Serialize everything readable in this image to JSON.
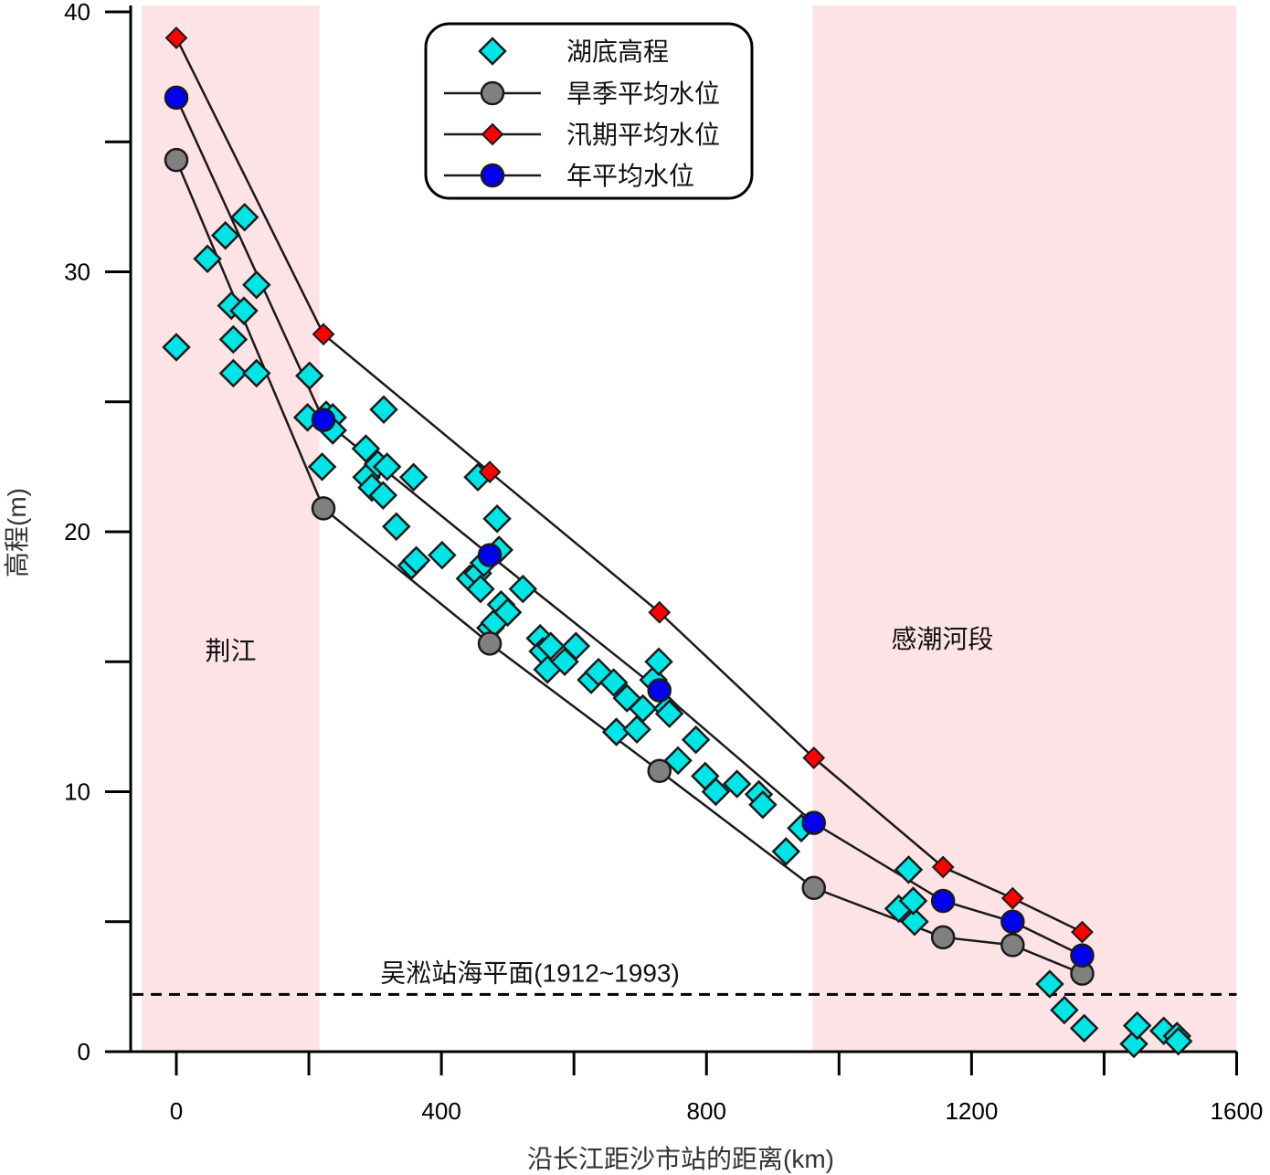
{
  "chart_data": {
    "type": "scatter",
    "title": "",
    "xlabel": "沿长江距沙市站的距离(km)",
    "ylabel": "高程(m)",
    "xlim": [
      -70,
      1600
    ],
    "ylim": [
      0,
      40
    ],
    "xticks": [
      0,
      400,
      800,
      1200,
      1600
    ],
    "yticks": [
      0,
      10,
      20,
      30,
      40
    ],
    "grid": false,
    "legend_position": "top-center",
    "shaded_regions": [
      {
        "label": "荆江",
        "x_from": -52,
        "x_to": 216,
        "color": "#fde3e6"
      },
      {
        "label": "感潮河段",
        "x_from": 960,
        "x_to": 1600,
        "color": "#fde3e6"
      }
    ],
    "reference_line": {
      "label": "吴淞站海平面(1912~1993)",
      "y": 2.2,
      "style": "dashed"
    },
    "series": [
      {
        "name": "湖底高程",
        "kind": "scatter",
        "marker": "diamond",
        "color": "#00e5e5",
        "points": [
          [
            0,
            27.1
          ],
          [
            47,
            30.5
          ],
          [
            74,
            31.4
          ],
          [
            83,
            28.7
          ],
          [
            86,
            27.4
          ],
          [
            86,
            26.1
          ],
          [
            102,
            28.5
          ],
          [
            103,
            32.1
          ],
          [
            121,
            29.5
          ],
          [
            121,
            26.1
          ],
          [
            201,
            26.0
          ],
          [
            198,
            24.4
          ],
          [
            220,
            22.5
          ],
          [
            226,
            24.5
          ],
          [
            236,
            24.4
          ],
          [
            236,
            23.9
          ],
          [
            286,
            23.2
          ],
          [
            287,
            22.1
          ],
          [
            295,
            21.7
          ],
          [
            304,
            22.6
          ],
          [
            312,
            21.4
          ],
          [
            318,
            22.5
          ],
          [
            313,
            24.7
          ],
          [
            332,
            20.2
          ],
          [
            355,
            18.7
          ],
          [
            358,
            22.1
          ],
          [
            362,
            18.9
          ],
          [
            401,
            19.1
          ],
          [
            443,
            18.2
          ],
          [
            455,
            18.4
          ],
          [
            455,
            22.1
          ],
          [
            459,
            17.8
          ],
          [
            464,
            18.8
          ],
          [
            474,
            16.3
          ],
          [
            480,
            16.5
          ],
          [
            484,
            20.5
          ],
          [
            487,
            19.3
          ],
          [
            490,
            17.2
          ],
          [
            500,
            16.9
          ],
          [
            523,
            17.8
          ],
          [
            549,
            15.9
          ],
          [
            553,
            15.4
          ],
          [
            560,
            14.7
          ],
          [
            565,
            15.6
          ],
          [
            586,
            15.0
          ],
          [
            603,
            15.6
          ],
          [
            626,
            14.3
          ],
          [
            637,
            14.6
          ],
          [
            660,
            14.2
          ],
          [
            664,
            12.3
          ],
          [
            680,
            13.6
          ],
          [
            695,
            12.4
          ],
          [
            704,
            13.2
          ],
          [
            720,
            14.3
          ],
          [
            728,
            15.0
          ],
          [
            741,
            13.2
          ],
          [
            744,
            13.0
          ],
          [
            757,
            11.2
          ],
          [
            784,
            12.0
          ],
          [
            798,
            10.6
          ],
          [
            814,
            10.0
          ],
          [
            846,
            10.3
          ],
          [
            879,
            9.9
          ],
          [
            885,
            9.5
          ],
          [
            920,
            7.7
          ],
          [
            943,
            8.6
          ],
          [
            1090,
            5.5
          ],
          [
            1105,
            7.0
          ],
          [
            1114,
            5.0
          ],
          [
            1112,
            5.8
          ],
          [
            1318,
            2.6
          ],
          [
            1340,
            1.6
          ],
          [
            1370,
            0.9
          ],
          [
            1445,
            0.3
          ],
          [
            1450,
            1.0
          ],
          [
            1490,
            0.8
          ],
          [
            1510,
            0.6
          ],
          [
            1512,
            0.4
          ]
        ]
      },
      {
        "name": "旱季平均水位",
        "kind": "line",
        "marker": "circle",
        "color": "#808080",
        "points": [
          [
            0,
            34.3
          ],
          [
            222,
            20.9
          ],
          [
            473,
            15.7
          ],
          [
            729,
            10.8
          ],
          [
            962,
            6.3
          ],
          [
            1157,
            4.4
          ],
          [
            1262,
            4.1
          ],
          [
            1367,
            3.0
          ]
        ]
      },
      {
        "name": "汛期平均水位",
        "kind": "line",
        "marker": "diamond",
        "color": "#ff0000",
        "points": [
          [
            0,
            39.0
          ],
          [
            222,
            27.6
          ],
          [
            473,
            22.3
          ],
          [
            729,
            16.9
          ],
          [
            962,
            11.3
          ],
          [
            1157,
            7.1
          ],
          [
            1262,
            5.9
          ],
          [
            1367,
            4.6
          ]
        ]
      },
      {
        "name": "年平均水位",
        "kind": "line",
        "marker": "circle",
        "color": "#0000ee",
        "points": [
          [
            0,
            36.7
          ],
          [
            222,
            24.3
          ],
          [
            473,
            19.1
          ],
          [
            729,
            13.9
          ],
          [
            962,
            8.8
          ],
          [
            1157,
            5.8
          ],
          [
            1262,
            5.0
          ],
          [
            1367,
            3.7
          ]
        ]
      }
    ]
  }
}
